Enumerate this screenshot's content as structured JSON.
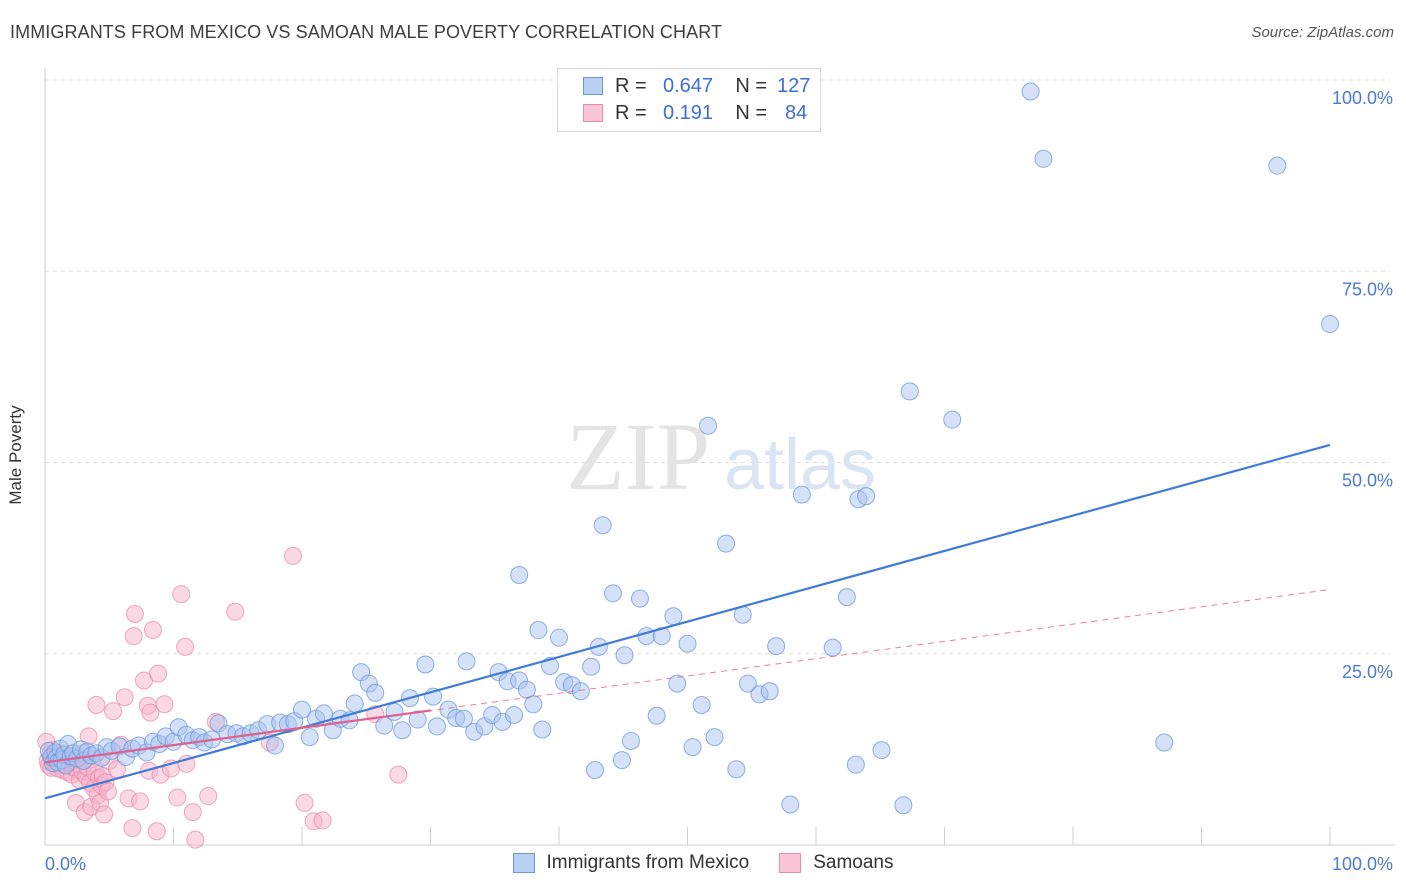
{
  "title": "IMMIGRANTS FROM MEXICO VS SAMOAN MALE POVERTY CORRELATION CHART",
  "source": "Source: ZipAtlas.com",
  "watermark": {
    "zip": "ZIP",
    "atlas": "atlas"
  },
  "colors": {
    "blue": "#3f7bd8",
    "blue_fill": "#a9c4ef",
    "pink": "#e0608e",
    "pink_fill": "#f5b3c9",
    "grid": "#dcdcdc",
    "tick": "#4a7bd0"
  },
  "legend_top": {
    "rows": [
      {
        "r_label": "R =",
        "r_value": "0.647",
        "n_label": "N =",
        "n_value": "127"
      },
      {
        "r_label": "R =",
        "r_value": "0.191",
        "n_label": "N =",
        "n_value": "84"
      }
    ]
  },
  "legend_bottom": {
    "items": [
      "Immigrants from Mexico",
      "Samoans"
    ]
  },
  "chart_data": {
    "type": "scatter",
    "title": "IMMIGRANTS FROM MEXICO VS SAMOAN MALE POVERTY CORRELATION CHART",
    "xlabel": "",
    "ylabel": "Male Poverty",
    "xlim": [
      0,
      100
    ],
    "ylim": [
      0,
      100
    ],
    "x_tick_labels": [
      "0.0%",
      "100.0%"
    ],
    "y_tick_labels": [
      "25.0%",
      "50.0%",
      "75.0%",
      "100.0%"
    ],
    "y_ticks": [
      25,
      50,
      75,
      100
    ],
    "grid": true,
    "legend_position": "top-center",
    "series": [
      {
        "name": "Immigrants from Mexico",
        "R": 0.647,
        "N": 127,
        "trend": {
          "x": [
            0,
            100
          ],
          "y": [
            6.1,
            52.3
          ],
          "style": "solid"
        },
        "points": [
          [
            0.3,
            12.3
          ],
          [
            0.5,
            11.5
          ],
          [
            0.6,
            10.7
          ],
          [
            0.8,
            12.1
          ],
          [
            0.9,
            11.4
          ],
          [
            1.0,
            10.8
          ],
          [
            1.2,
            12.6
          ],
          [
            1.3,
            11.1
          ],
          [
            1.5,
            11.8
          ],
          [
            1.6,
            10.4
          ],
          [
            1.8,
            13.2
          ],
          [
            2.0,
            11.6
          ],
          [
            2.2,
            12.0
          ],
          [
            2.5,
            11.3
          ],
          [
            2.8,
            12.5
          ],
          [
            3.0,
            11.0
          ],
          [
            3.3,
            12.2
          ],
          [
            3.6,
            11.7
          ],
          [
            4.0,
            12.0
          ],
          [
            4.4,
            11.4
          ],
          [
            4.8,
            12.8
          ],
          [
            5.2,
            12.3
          ],
          [
            5.8,
            12.9
          ],
          [
            6.3,
            11.5
          ],
          [
            6.8,
            12.6
          ],
          [
            7.3,
            13.0
          ],
          [
            7.9,
            12.1
          ],
          [
            8.4,
            13.5
          ],
          [
            8.9,
            13.2
          ],
          [
            9.4,
            14.2
          ],
          [
            10.0,
            13.5
          ],
          [
            10.4,
            15.4
          ],
          [
            11.0,
            14.4
          ],
          [
            11.5,
            13.7
          ],
          [
            12.0,
            14.1
          ],
          [
            12.4,
            13.4
          ],
          [
            13.0,
            13.8
          ],
          [
            13.5,
            15.9
          ],
          [
            14.2,
            14.5
          ],
          [
            14.9,
            14.6
          ],
          [
            15.4,
            14.2
          ],
          [
            16.0,
            14.6
          ],
          [
            16.6,
            15.0
          ],
          [
            17.3,
            15.8
          ],
          [
            17.9,
            13.0
          ],
          [
            18.3,
            16.0
          ],
          [
            18.9,
            15.8
          ],
          [
            19.4,
            16.2
          ],
          [
            20.0,
            17.7
          ],
          [
            20.6,
            14.1
          ],
          [
            21.1,
            16.5
          ],
          [
            21.7,
            17.2
          ],
          [
            22.4,
            15.0
          ],
          [
            23.0,
            16.5
          ],
          [
            23.7,
            16.3
          ],
          [
            24.1,
            18.5
          ],
          [
            24.6,
            22.6
          ],
          [
            25.2,
            21.1
          ],
          [
            25.7,
            19.9
          ],
          [
            26.4,
            15.6
          ],
          [
            27.2,
            17.4
          ],
          [
            27.8,
            15.0
          ],
          [
            28.4,
            19.2
          ],
          [
            29.0,
            16.4
          ],
          [
            29.6,
            23.6
          ],
          [
            30.2,
            19.4
          ],
          [
            30.5,
            15.5
          ],
          [
            31.4,
            17.7
          ],
          [
            32.0,
            16.6
          ],
          [
            32.6,
            16.5
          ],
          [
            32.8,
            24.0
          ],
          [
            33.4,
            14.8
          ],
          [
            34.2,
            15.5
          ],
          [
            34.8,
            17.0
          ],
          [
            35.3,
            22.6
          ],
          [
            35.6,
            16.1
          ],
          [
            36.0,
            21.4
          ],
          [
            36.5,
            17.0
          ],
          [
            36.9,
            21.5
          ],
          [
            36.9,
            35.3
          ],
          [
            37.5,
            20.3
          ],
          [
            38.0,
            18.4
          ],
          [
            38.4,
            28.1
          ],
          [
            38.7,
            15.1
          ],
          [
            39.3,
            23.4
          ],
          [
            40.0,
            27.1
          ],
          [
            40.4,
            21.3
          ],
          [
            41.0,
            20.9
          ],
          [
            41.7,
            20.1
          ],
          [
            42.5,
            23.3
          ],
          [
            42.8,
            9.8
          ],
          [
            43.1,
            25.9
          ],
          [
            43.4,
            41.8
          ],
          [
            44.2,
            32.9
          ],
          [
            44.9,
            11.1
          ],
          [
            45.1,
            24.8
          ],
          [
            45.6,
            13.6
          ],
          [
            46.3,
            32.2
          ],
          [
            46.8,
            27.3
          ],
          [
            47.6,
            16.9
          ],
          [
            48.0,
            27.3
          ],
          [
            48.9,
            29.9
          ],
          [
            49.2,
            21.1
          ],
          [
            50.0,
            26.3
          ],
          [
            50.4,
            12.8
          ],
          [
            51.1,
            18.3
          ],
          [
            51.6,
            54.8
          ],
          [
            52.1,
            14.1
          ],
          [
            53.0,
            39.4
          ],
          [
            53.8,
            9.9
          ],
          [
            54.3,
            30.1
          ],
          [
            54.7,
            21.1
          ],
          [
            55.6,
            19.7
          ],
          [
            56.4,
            20.1
          ],
          [
            56.9,
            26.0
          ],
          [
            58.0,
            5.3
          ],
          [
            58.9,
            45.8
          ],
          [
            61.3,
            25.8
          ],
          [
            62.4,
            32.4
          ],
          [
            63.1,
            10.5
          ],
          [
            63.3,
            45.2
          ],
          [
            63.9,
            45.6
          ],
          [
            65.1,
            12.4
          ],
          [
            66.8,
            5.2
          ],
          [
            67.3,
            59.3
          ],
          [
            70.6,
            55.6
          ],
          [
            76.7,
            98.5
          ],
          [
            77.7,
            89.7
          ],
          [
            87.1,
            13.4
          ],
          [
            95.9,
            88.8
          ],
          [
            100.0,
            68.1
          ]
        ]
      },
      {
        "name": "Samoans",
        "R": 0.191,
        "N": 84,
        "trend": {
          "x": [
            0,
            100
          ],
          "y": [
            10.8,
            33.4
          ],
          "style": "dashed",
          "solid_range": [
            0,
            30
          ]
        },
        "points": [
          [
            0.1,
            13.5
          ],
          [
            0.2,
            11.0
          ],
          [
            0.3,
            10.4
          ],
          [
            0.4,
            11.8
          ],
          [
            0.5,
            10.1
          ],
          [
            0.6,
            12.4
          ],
          [
            0.7,
            11.1
          ],
          [
            0.8,
            10.6
          ],
          [
            0.9,
            11.6
          ],
          [
            1.0,
            10.0
          ],
          [
            1.1,
            12.0
          ],
          [
            1.2,
            10.9
          ],
          [
            1.3,
            11.4
          ],
          [
            1.4,
            9.8
          ],
          [
            1.5,
            11.9
          ],
          [
            1.6,
            10.5
          ],
          [
            1.7,
            11.3
          ],
          [
            1.8,
            9.5
          ],
          [
            1.9,
            10.8
          ],
          [
            2.0,
            11.5
          ],
          [
            2.1,
            9.2
          ],
          [
            2.2,
            10.2
          ],
          [
            2.3,
            11.0
          ],
          [
            2.4,
            5.5
          ],
          [
            2.5,
            9.8
          ],
          [
            2.6,
            10.6
          ],
          [
            2.7,
            8.5
          ],
          [
            2.8,
            11.2
          ],
          [
            2.9,
            9.6
          ],
          [
            3.0,
            12.0
          ],
          [
            3.1,
            4.3
          ],
          [
            3.2,
            9.0
          ],
          [
            3.3,
            10.2
          ],
          [
            3.4,
            14.2
          ],
          [
            3.5,
            8.1
          ],
          [
            3.6,
            5.0
          ],
          [
            3.7,
            11.2
          ],
          [
            3.8,
            7.4
          ],
          [
            3.9,
            9.5
          ],
          [
            4.0,
            18.3
          ],
          [
            4.1,
            6.5
          ],
          [
            4.2,
            8.8
          ],
          [
            4.3,
            5.5
          ],
          [
            4.4,
            7.8
          ],
          [
            4.5,
            9.0
          ],
          [
            4.6,
            4.0
          ],
          [
            4.7,
            8.2
          ],
          [
            4.9,
            7.0
          ],
          [
            5.0,
            11.0
          ],
          [
            5.3,
            17.5
          ],
          [
            5.6,
            9.9
          ],
          [
            5.9,
            13.1
          ],
          [
            6.2,
            19.3
          ],
          [
            6.5,
            6.1
          ],
          [
            6.8,
            2.2
          ],
          [
            6.9,
            27.3
          ],
          [
            7.0,
            30.2
          ],
          [
            7.4,
            5.7
          ],
          [
            7.7,
            21.5
          ],
          [
            8.0,
            18.2
          ],
          [
            8.1,
            9.7
          ],
          [
            8.2,
            17.3
          ],
          [
            8.4,
            28.1
          ],
          [
            8.7,
            1.8
          ],
          [
            8.8,
            22.4
          ],
          [
            9.0,
            9.2
          ],
          [
            9.3,
            18.4
          ],
          [
            9.8,
            10.0
          ],
          [
            10.3,
            6.2
          ],
          [
            10.6,
            32.8
          ],
          [
            10.9,
            25.9
          ],
          [
            11.0,
            10.6
          ],
          [
            11.5,
            4.3
          ],
          [
            11.7,
            0.7
          ],
          [
            12.7,
            6.4
          ],
          [
            13.3,
            16.1
          ],
          [
            14.8,
            30.5
          ],
          [
            17.5,
            13.4
          ],
          [
            19.3,
            37.8
          ],
          [
            20.2,
            5.5
          ],
          [
            20.9,
            3.1
          ],
          [
            21.6,
            3.2
          ],
          [
            25.7,
            17.1
          ],
          [
            27.5,
            9.2
          ]
        ]
      }
    ]
  }
}
